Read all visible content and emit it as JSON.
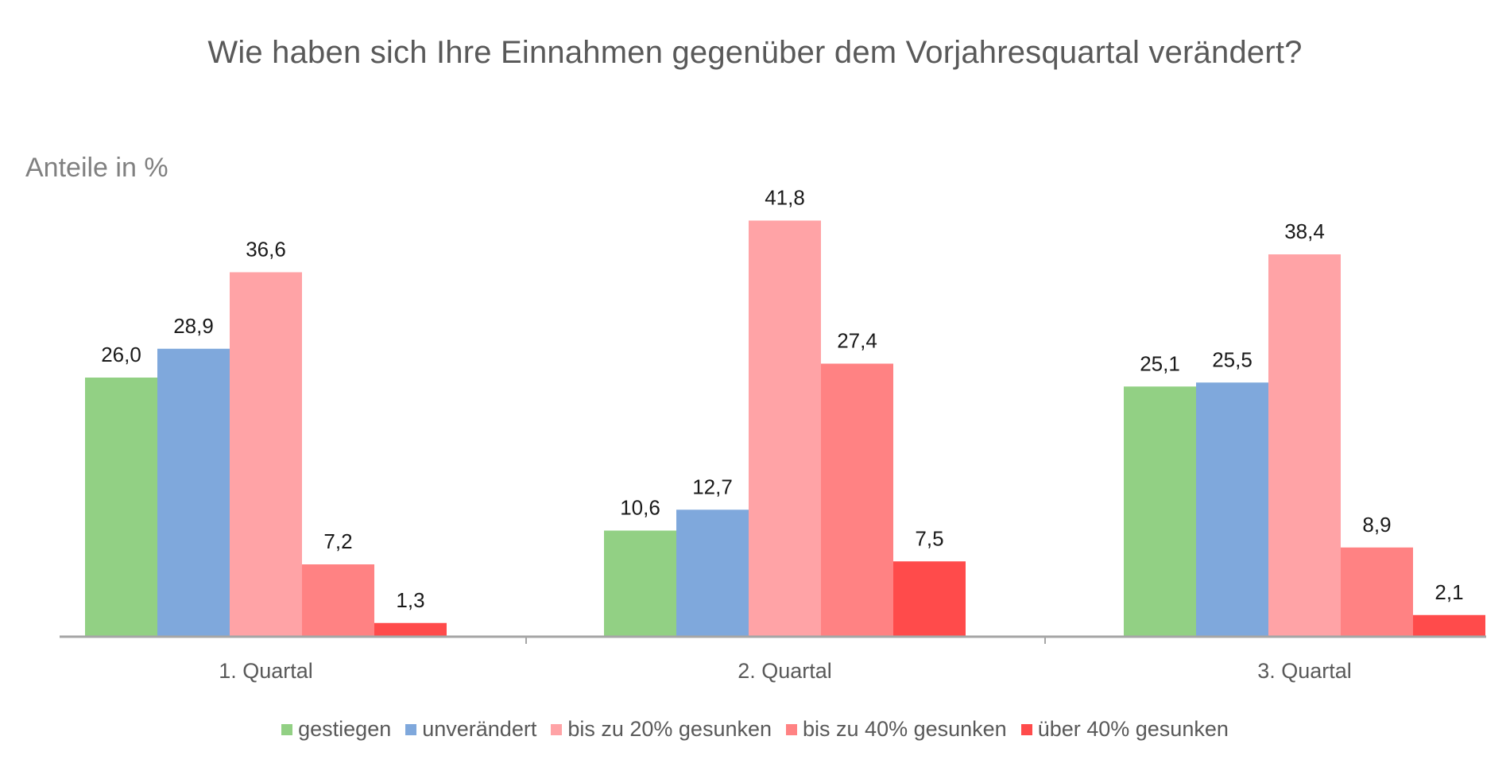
{
  "chart_data": {
    "type": "bar",
    "title": "Wie haben sich Ihre Einnahmen gegenüber dem Vorjahresquartal verändert?",
    "xlabel": "",
    "ylabel": "Anteile in %",
    "ylim": [
      0,
      45
    ],
    "grid": false,
    "legend_position": "bottom",
    "categories": [
      "1. Quartal",
      "2. Quartal",
      "3. Quartal"
    ],
    "series": [
      {
        "name": "gestiegen",
        "color": "#92D084",
        "values": [
          26.0,
          10.6,
          25.1
        ],
        "labels": [
          "26,0",
          "10,6",
          "25,1"
        ]
      },
      {
        "name": "unverändert",
        "color": "#7FA8DC",
        "values": [
          28.9,
          12.7,
          25.5
        ],
        "labels": [
          "28,9",
          "12,7",
          "25,5"
        ]
      },
      {
        "name": "bis zu 20% gesunken",
        "color": "#FFA3A6",
        "values": [
          36.6,
          41.8,
          38.4
        ],
        "labels": [
          "36,6",
          "41,8",
          "38,4"
        ]
      },
      {
        "name": "bis zu 40% gesunken",
        "color": "#FF8283",
        "values": [
          7.2,
          27.4,
          8.9
        ],
        "labels": [
          "7,2",
          "27,4",
          "8,9"
        ]
      },
      {
        "name": "über 40% gesunken",
        "color": "#FF4B4B",
        "values": [
          1.3,
          7.5,
          2.1
        ],
        "labels": [
          "1,3",
          "7,5",
          "2,1"
        ]
      }
    ],
    "axis_color": "#A6A6A6",
    "label_color": "#1A1A1A"
  }
}
